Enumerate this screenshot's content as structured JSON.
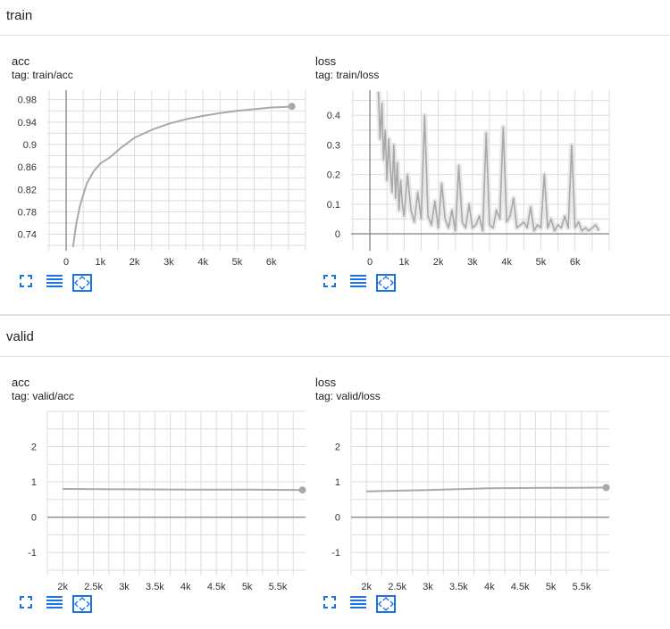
{
  "groups": {
    "train": {
      "title": "train"
    },
    "valid": {
      "title": "valid"
    }
  },
  "colors": {
    "series": "#a9a9a9",
    "series_light": "#e8e8e8",
    "grid": "#dddddd",
    "axis": "#8a8a8a",
    "icon_blue": "#1a73e8"
  },
  "icons": {
    "fullscreen": "fullscreen-icon",
    "data_table": "data-table-icon",
    "fit_domain": "fit-domain-icon"
  },
  "cards": {
    "train_acc": {
      "title": "acc",
      "tag": "tag: train/acc",
      "chart_data": {
        "type": "line",
        "x_ticks": [
          "0",
          "1k",
          "2k",
          "3k",
          "4k",
          "5k",
          "6k"
        ],
        "y_ticks": [
          "0.74",
          "0.78",
          "0.82",
          "0.86",
          "0.9",
          "0.94",
          "0.98"
        ],
        "series": [
          {
            "x": [
              200,
              300,
              400,
              600,
              800,
              1000,
              1300,
              1600,
              2000,
              2500,
              3000,
              3500,
              4000,
              4500,
              5000,
              5500,
              6000,
              6400,
              6600
            ],
            "y": [
              0.715,
              0.76,
              0.79,
              0.83,
              0.852,
              0.866,
              0.878,
              0.894,
              0.912,
              0.926,
              0.937,
              0.945,
              0.951,
              0.956,
              0.96,
              0.963,
              0.966,
              0.967,
              0.968
            ]
          }
        ]
      }
    },
    "train_loss": {
      "title": "loss",
      "tag": "tag: train/loss",
      "chart_data": {
        "type": "line",
        "x_ticks": [
          "0",
          "1k",
          "2k",
          "3k",
          "4k",
          "5k",
          "6k"
        ],
        "y_ticks": [
          "0",
          "0.1",
          "0.2",
          "0.3",
          "0.4"
        ],
        "series": [
          {
            "x": [
              250,
              300,
              350,
              400,
              450,
              500,
              550,
              600,
              650,
              700,
              750,
              800,
              850,
              900,
              950,
              1000,
              1100,
              1200,
              1300,
              1400,
              1500,
              1600,
              1700,
              1800,
              1900,
              2000,
              2100,
              2200,
              2300,
              2400,
              2500,
              2600,
              2700,
              2800,
              2900,
              3000,
              3100,
              3200,
              3300,
              3400,
              3500,
              3600,
              3700,
              3800,
              3900,
              4000,
              4100,
              4200,
              4300,
              4400,
              4500,
              4600,
              4700,
              4800,
              4900,
              5000,
              5100,
              5200,
              5300,
              5400,
              5500,
              5600,
              5700,
              5800,
              5900,
              6000,
              6100,
              6200,
              6300,
              6400,
              6500,
              6600,
              6700
            ],
            "y": [
              0.48,
              0.32,
              0.44,
              0.25,
              0.35,
              0.18,
              0.32,
              0.22,
              0.14,
              0.3,
              0.12,
              0.24,
              0.08,
              0.18,
              0.1,
              0.06,
              0.2,
              0.08,
              0.04,
              0.14,
              0.05,
              0.4,
              0.06,
              0.03,
              0.11,
              0.02,
              0.17,
              0.05,
              0.02,
              0.08,
              0.01,
              0.23,
              0.04,
              0.02,
              0.1,
              0.02,
              0.03,
              0.06,
              0.01,
              0.34,
              0.03,
              0.02,
              0.08,
              0.05,
              0.36,
              0.04,
              0.06,
              0.12,
              0.02,
              0.03,
              0.04,
              0.02,
              0.09,
              0.01,
              0.03,
              0.02,
              0.2,
              0.02,
              0.05,
              0.01,
              0.03,
              0.02,
              0.06,
              0.02,
              0.3,
              0.02,
              0.04,
              0.01,
              0.02,
              0.01,
              0.02,
              0.03,
              0.01
            ]
          }
        ]
      }
    },
    "valid_acc": {
      "title": "acc",
      "tag": "tag: valid/acc",
      "chart_data": {
        "type": "line",
        "x_ticks": [
          "2k",
          "2.5k",
          "3k",
          "3.5k",
          "4k",
          "4.5k",
          "5k",
          "5.5k"
        ],
        "y_ticks": [
          "-1",
          "0",
          "1",
          "2"
        ],
        "series": [
          {
            "x": [
              2000,
              3000,
              4000,
              5000,
              5900
            ],
            "y": [
              0.8,
              0.79,
              0.78,
              0.78,
              0.77
            ]
          }
        ]
      }
    },
    "valid_loss": {
      "title": "loss",
      "tag": "tag: valid/loss",
      "chart_data": {
        "type": "line",
        "x_ticks": [
          "2k",
          "2.5k",
          "3k",
          "3.5k",
          "4k",
          "4.5k",
          "5k",
          "5.5k"
        ],
        "y_ticks": [
          "-1",
          "0",
          "1",
          "2"
        ],
        "series": [
          {
            "x": [
              2000,
              3000,
              4000,
              5000,
              5900
            ],
            "y": [
              0.73,
              0.77,
              0.82,
              0.83,
              0.84
            ]
          }
        ]
      }
    }
  }
}
